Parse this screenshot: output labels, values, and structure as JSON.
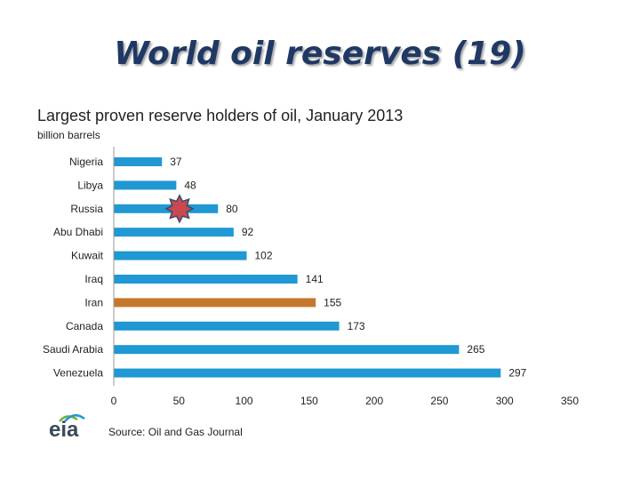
{
  "slide": {
    "title": "World oil reserves (19)"
  },
  "source": "Source: Oil and Gas Journal",
  "logo": {
    "text": "eia",
    "icon": "eia-logo-icon"
  },
  "colors": {
    "bar": "#1f98d4",
    "highlight_bar": "#c5772c",
    "marker": "#c8494f",
    "title": "#1f3864"
  },
  "chart_data": {
    "type": "bar",
    "orientation": "horizontal",
    "title": "Largest proven reserve holders of oil, January 2013",
    "subtitle": "billion barrels",
    "categories": [
      "Nigeria",
      "Libya",
      "Russia",
      "Abu Dhabi",
      "Kuwait",
      "Iraq",
      "Iran",
      "Canada",
      "Saudi Arabia",
      "Venezuela"
    ],
    "values": [
      37,
      48,
      80,
      92,
      102,
      141,
      155,
      173,
      265,
      297
    ],
    "data_labels": [
      "37",
      "48",
      "80",
      "92",
      "102",
      "141",
      "155",
      "173",
      "265",
      "297"
    ],
    "highlight_category": "Iran",
    "star_marker_category": "Russia",
    "xlim": [
      0,
      350
    ],
    "xticks": [
      0,
      50,
      100,
      150,
      200,
      250,
      300,
      350
    ],
    "grid": false,
    "legend": "none"
  }
}
